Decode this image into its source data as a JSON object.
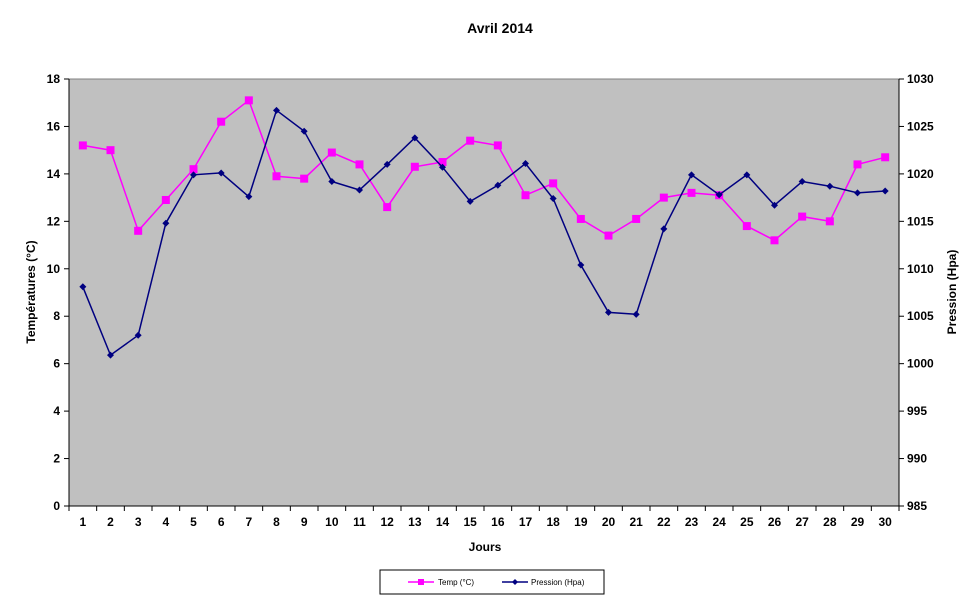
{
  "chart_data": {
    "type": "line",
    "title": "Avril 2014",
    "xlabel": "Jours",
    "ylabel_left": "Températures (°C)",
    "ylabel_right": "Pression (Hpa)",
    "categories": [
      "1",
      "2",
      "3",
      "4",
      "5",
      "6",
      "7",
      "8",
      "9",
      "10",
      "11",
      "12",
      "13",
      "14",
      "15",
      "16",
      "17",
      "18",
      "19",
      "20",
      "21",
      "22",
      "23",
      "24",
      "25",
      "26",
      "27",
      "28",
      "29",
      "30"
    ],
    "ylim_left": [
      0,
      18
    ],
    "yticks_left": [
      0,
      2,
      4,
      6,
      8,
      10,
      12,
      14,
      16,
      18
    ],
    "ylim_right": [
      985,
      1030
    ],
    "yticks_right": [
      985,
      990,
      995,
      1000,
      1005,
      1010,
      1015,
      1020,
      1025,
      1030
    ],
    "grid": false,
    "legend_position": "bottom",
    "plot_background": "#c0c0c0",
    "series": [
      {
        "name": "Temp (°C)",
        "axis": "left",
        "color": "#ff00ff",
        "marker": "square",
        "values": [
          15.2,
          15.0,
          11.6,
          12.9,
          14.2,
          16.2,
          17.1,
          13.9,
          13.8,
          14.9,
          14.4,
          12.6,
          14.3,
          14.5,
          15.4,
          15.2,
          13.1,
          13.6,
          12.1,
          11.4,
          12.1,
          13.0,
          13.2,
          13.1,
          11.8,
          11.2,
          12.2,
          12.0,
          14.4,
          14.7
        ]
      },
      {
        "name": "Pression (Hpa)",
        "axis": "right",
        "color": "#000080",
        "marker": "diamond",
        "values": [
          1008.1,
          1000.9,
          1003.0,
          1014.8,
          1019.9,
          1020.1,
          1017.6,
          1026.7,
          1024.5,
          1019.2,
          1018.3,
          1021.0,
          1023.8,
          1020.7,
          1017.1,
          1018.8,
          1021.1,
          1017.4,
          1010.4,
          1005.4,
          1005.2,
          1014.2,
          1019.9,
          1017.8,
          1019.9,
          1016.7,
          1019.2,
          1018.7,
          1018.0,
          1018.2
        ]
      }
    ]
  }
}
